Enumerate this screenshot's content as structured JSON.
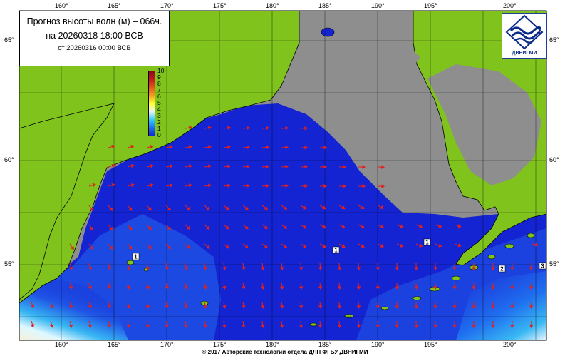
{
  "forecast": {
    "title": "Прогноз высоты волн (м) – 066ч.",
    "valid_time": "на 20260318 18:00 ВСВ",
    "issued_time": "от 20260316 00:00 ВСВ"
  },
  "logo": {
    "text": "ДВНИГМИ",
    "icon": "wave-logo-icon"
  },
  "scale": {
    "labels": [
      "10",
      "9",
      "8",
      "7",
      "6",
      "5",
      "4",
      "3",
      "2",
      "1",
      "0"
    ]
  },
  "axes": {
    "lon_top": [
      "160°",
      "165°",
      "170°",
      "175°",
      "180°",
      "185°",
      "190°",
      "195°",
      "200°"
    ],
    "lon_bottom": [
      "160°",
      "165°",
      "170°",
      "175°",
      "180°",
      "185°",
      "190°",
      "195°",
      "200°"
    ],
    "lat_left": [
      "65°",
      "60°",
      "55°"
    ],
    "lat_right": [
      "65°",
      "60°",
      "55°"
    ]
  },
  "contour_labels": [
    "1",
    "1",
    "1",
    "2",
    "3"
  ],
  "footer": "© 2017 Авторские технологии отдела ДЛП ФГБУ ДВНИГМИ",
  "colors": {
    "land": "#7fc31c",
    "no_data": "#8e8e8e",
    "sea_deep": "#1424d2",
    "sea_mid": "#1f55e6",
    "sea_shallow": "#38b7f3",
    "arrows": "#e02020",
    "grid": "#000000"
  }
}
